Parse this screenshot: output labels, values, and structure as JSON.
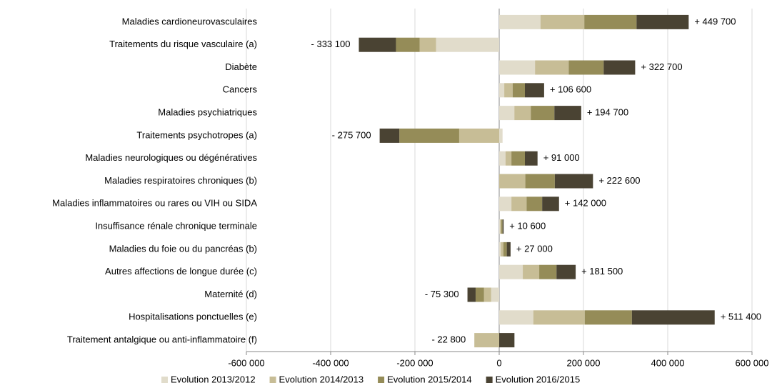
{
  "chart_data": {
    "type": "stacked_barh",
    "categories": [
      "Maladies cardioneurovasculaires",
      "Traitements du risque vasculaire (a)",
      "Diabète",
      "Cancers",
      "Maladies psychiatriques",
      "Traitements psychotropes (a)",
      "Maladies neurologiques ou dégénératives",
      "Maladies respiratoires chroniques (b)",
      "Maladies inflammatoires ou rares ou VIH ou SIDA",
      "Insuffisance rénale chronique terminale",
      "Maladies du foie ou du pancréas (b)",
      "Autres affections de longue durée (c)",
      "Maternité (d)",
      "Hospitalisations ponctuelles (e)",
      "Traitement antalgique ou anti-inflammatoire (f)"
    ],
    "series": [
      {
        "name": "Evolution 2013/2012",
        "color": "#e1dccb",
        "values": [
          98000,
          -150000,
          85000,
          12000,
          36000,
          8000,
          15000,
          0,
          29000,
          2000,
          4000,
          56000,
          -19000,
          81000,
          0
        ]
      },
      {
        "name": "Evolution 2014/2013",
        "color": "#c7bd96",
        "values": [
          104000,
          -39000,
          80000,
          20000,
          39000,
          -95000,
          14000,
          62000,
          36000,
          3000,
          6000,
          39000,
          -17000,
          122000,
          -59000
        ]
      },
      {
        "name": "Evolution 2015/2014",
        "color": "#958c58",
        "values": [
          124000,
          -56000,
          83000,
          29000,
          56000,
          -142000,
          32000,
          70000,
          37000,
          3000,
          8000,
          41000,
          -20000,
          112000,
          0
        ]
      },
      {
        "name": "Evolution 2016/2015",
        "color": "#4a4333",
        "values": [
          123700,
          -88100,
          74700,
          45600,
          63700,
          -46700,
          30000,
          90600,
          40000,
          2600,
          9000,
          45500,
          -19300,
          196400,
          36200
        ]
      }
    ],
    "totals": [
      449700,
      -333100,
      322700,
      106600,
      194700,
      -275700,
      91000,
      222600,
      142000,
      10600,
      27000,
      181500,
      -75300,
      511400,
      -22800
    ],
    "total_labels": [
      "+ 449 700",
      "- 333 100",
      "+ 322 700",
      "+ 106 600",
      "+ 194 700",
      "- 275 700",
      "+ 91 000",
      "+ 222 600",
      "+ 142 000",
      "+ 10 600",
      "+ 27 000",
      "+ 181 500",
      "- 75 300",
      "+ 511 400",
      "- 22 800"
    ],
    "xlim": [
      -600000,
      600000
    ],
    "xticks": [
      {
        "value": -600000,
        "label": "-600 000"
      },
      {
        "value": -400000,
        "label": "-400 000"
      },
      {
        "value": -200000,
        "label": "-200 000"
      },
      0,
      {
        "value": 200000,
        "label": "200 000"
      },
      {
        "value": 400000,
        "label": "400 000"
      },
      {
        "value": 600000,
        "label": "600 000"
      }
    ],
    "grid": true,
    "legend": "bottom"
  }
}
